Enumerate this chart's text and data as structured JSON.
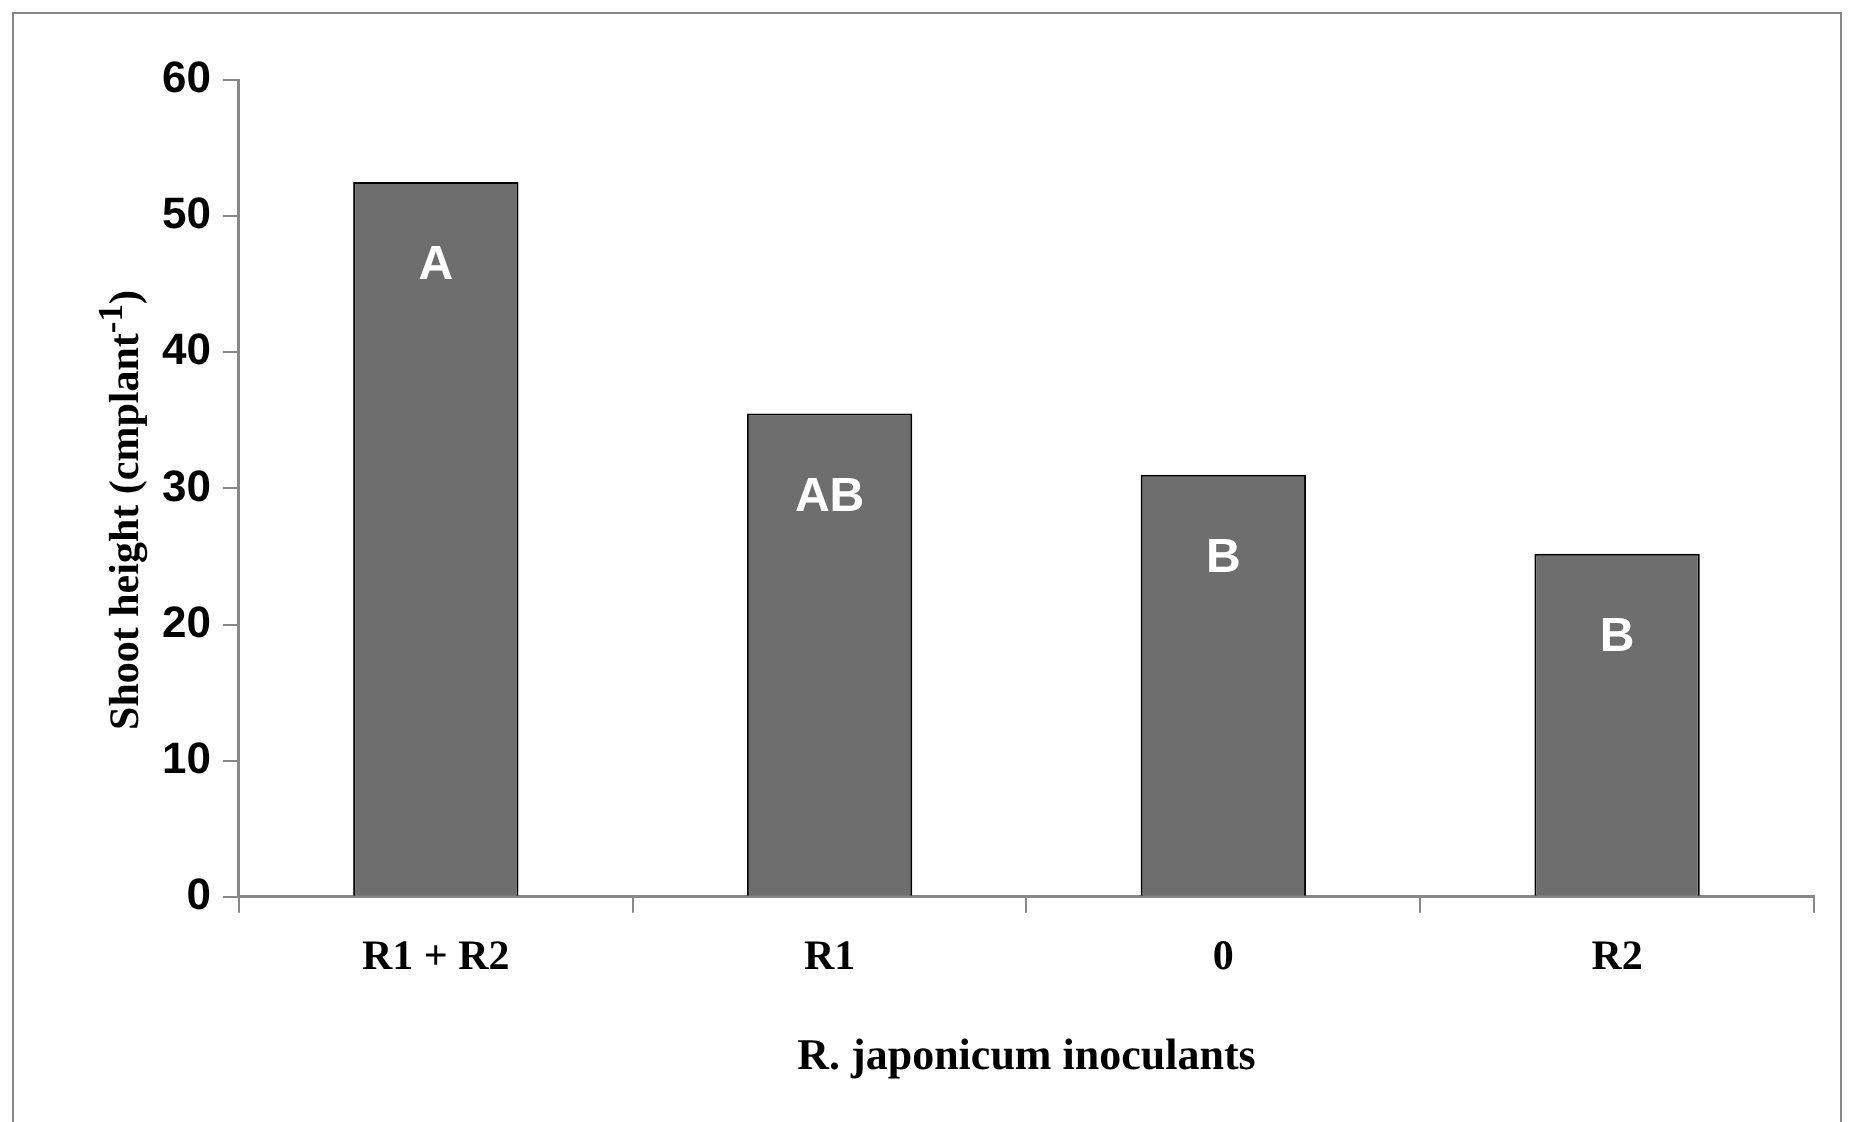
{
  "chart_data": {
    "type": "bar",
    "xlabel": "R. japonicum inoculants",
    "ylabel": "Shoot  height (cmplant$^{-1}$)",
    "categories": [
      "R1 + R2",
      "R1",
      "0",
      "R2"
    ],
    "values": [
      52.5,
      35.5,
      31,
      25.2
    ],
    "color": "#6e6e6e",
    "ylim": [
      0,
      60
    ],
    "yticks": [
      0,
      10,
      20,
      30,
      40,
      50,
      60
    ],
    "grid": false,
    "legend": false,
    "annotations": [
      "A",
      "AB",
      "B",
      "B"
    ]
  }
}
